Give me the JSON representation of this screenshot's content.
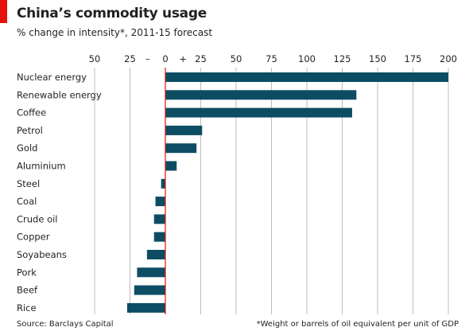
{
  "header": {
    "title": "China’s commodity usage",
    "subtitle": "% change in intensity*, 2011-15 forecast"
  },
  "footer": {
    "source": "Source: Barclays Capital",
    "footnote": "*Weight or barrels of oil equivalent per unit of GDP"
  },
  "colors": {
    "accent": "#e3120b",
    "bar": "#0d4d63",
    "zero_line": "#e3120b",
    "grid": "#bdbdbd"
  },
  "chart_data": {
    "type": "bar",
    "orientation": "horizontal",
    "title": "China’s commodity usage",
    "subtitle": "% change in intensity*, 2011-15 forecast",
    "categories": [
      "Nuclear energy",
      "Renewable energy",
      "Coffee",
      "Petrol",
      "Gold",
      "Aluminium",
      "Steel",
      "Coal",
      "Crude oil",
      "Copper",
      "Soyabeans",
      "Pork",
      "Beef",
      "Rice"
    ],
    "values": [
      200,
      135,
      132,
      26,
      22,
      8,
      -3,
      -7,
      -8,
      -8,
      -13,
      -20,
      -22,
      -27
    ],
    "xlim": [
      -50,
      200
    ],
    "xticks": [
      -50,
      -25,
      0,
      25,
      50,
      75,
      100,
      125,
      150,
      175,
      200
    ],
    "xtick_labels": [
      "50",
      "25",
      "0",
      "25",
      "50",
      "75",
      "100",
      "125",
      "150",
      "175",
      "200"
    ],
    "sign_labels": {
      "negative": "–",
      "positive": "+"
    },
    "grid": true,
    "axis_position": "top"
  }
}
